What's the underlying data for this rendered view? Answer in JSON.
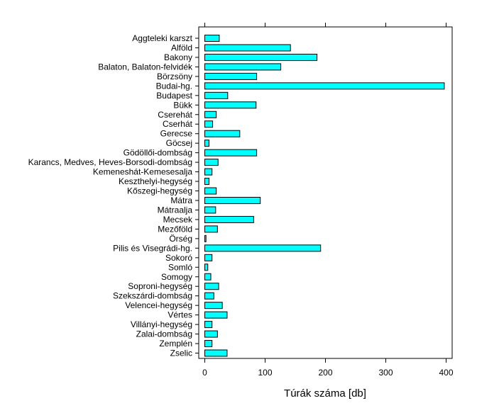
{
  "chart_data": {
    "type": "bar",
    "orientation": "horizontal",
    "xlabel": "Túrák száma [db]",
    "ylabel": "",
    "title": "",
    "xlim": [
      -10,
      410
    ],
    "xticks": [
      0,
      100,
      200,
      300,
      400
    ],
    "grid": false,
    "bar_color": "#00ffff",
    "categories": [
      "Aggteleki karszt",
      "Alföld",
      "Bakony",
      "Balaton, Balaton-felvidék",
      "Börzsöny",
      "Budai-hg.",
      "Budapest",
      "Bükk",
      "Cserehát",
      "Cserhát",
      "Gerecse",
      "Göcsej",
      "Gödöllői-dombság",
      "Karancs, Medves, Heves-Borsodi-dombság",
      "Kemeneshát-Kemesesalja",
      "Keszthelyi-hegység",
      "Kőszegi-hegység",
      "Mátra",
      "Mátraalja",
      "Mecsek",
      "Mezőföld",
      "Örség",
      "Pilis és Visegrádi-hg.",
      "Sokoró",
      "Somló",
      "Somogy",
      "Soproni-hegység",
      "Szekszárdi-dombság",
      "Velencei-hegység",
      "Vértes",
      "Villányi-hegység",
      "Zalai-dombság",
      "Zemplén",
      "Zselic"
    ],
    "values": [
      24,
      142,
      186,
      126,
      86,
      397,
      38,
      85,
      19,
      13,
      58,
      7,
      86,
      22,
      12,
      7,
      19,
      92,
      18,
      81,
      21,
      2,
      192,
      12,
      5,
      10,
      23,
      15,
      29,
      37,
      12,
      21,
      12,
      37
    ]
  }
}
